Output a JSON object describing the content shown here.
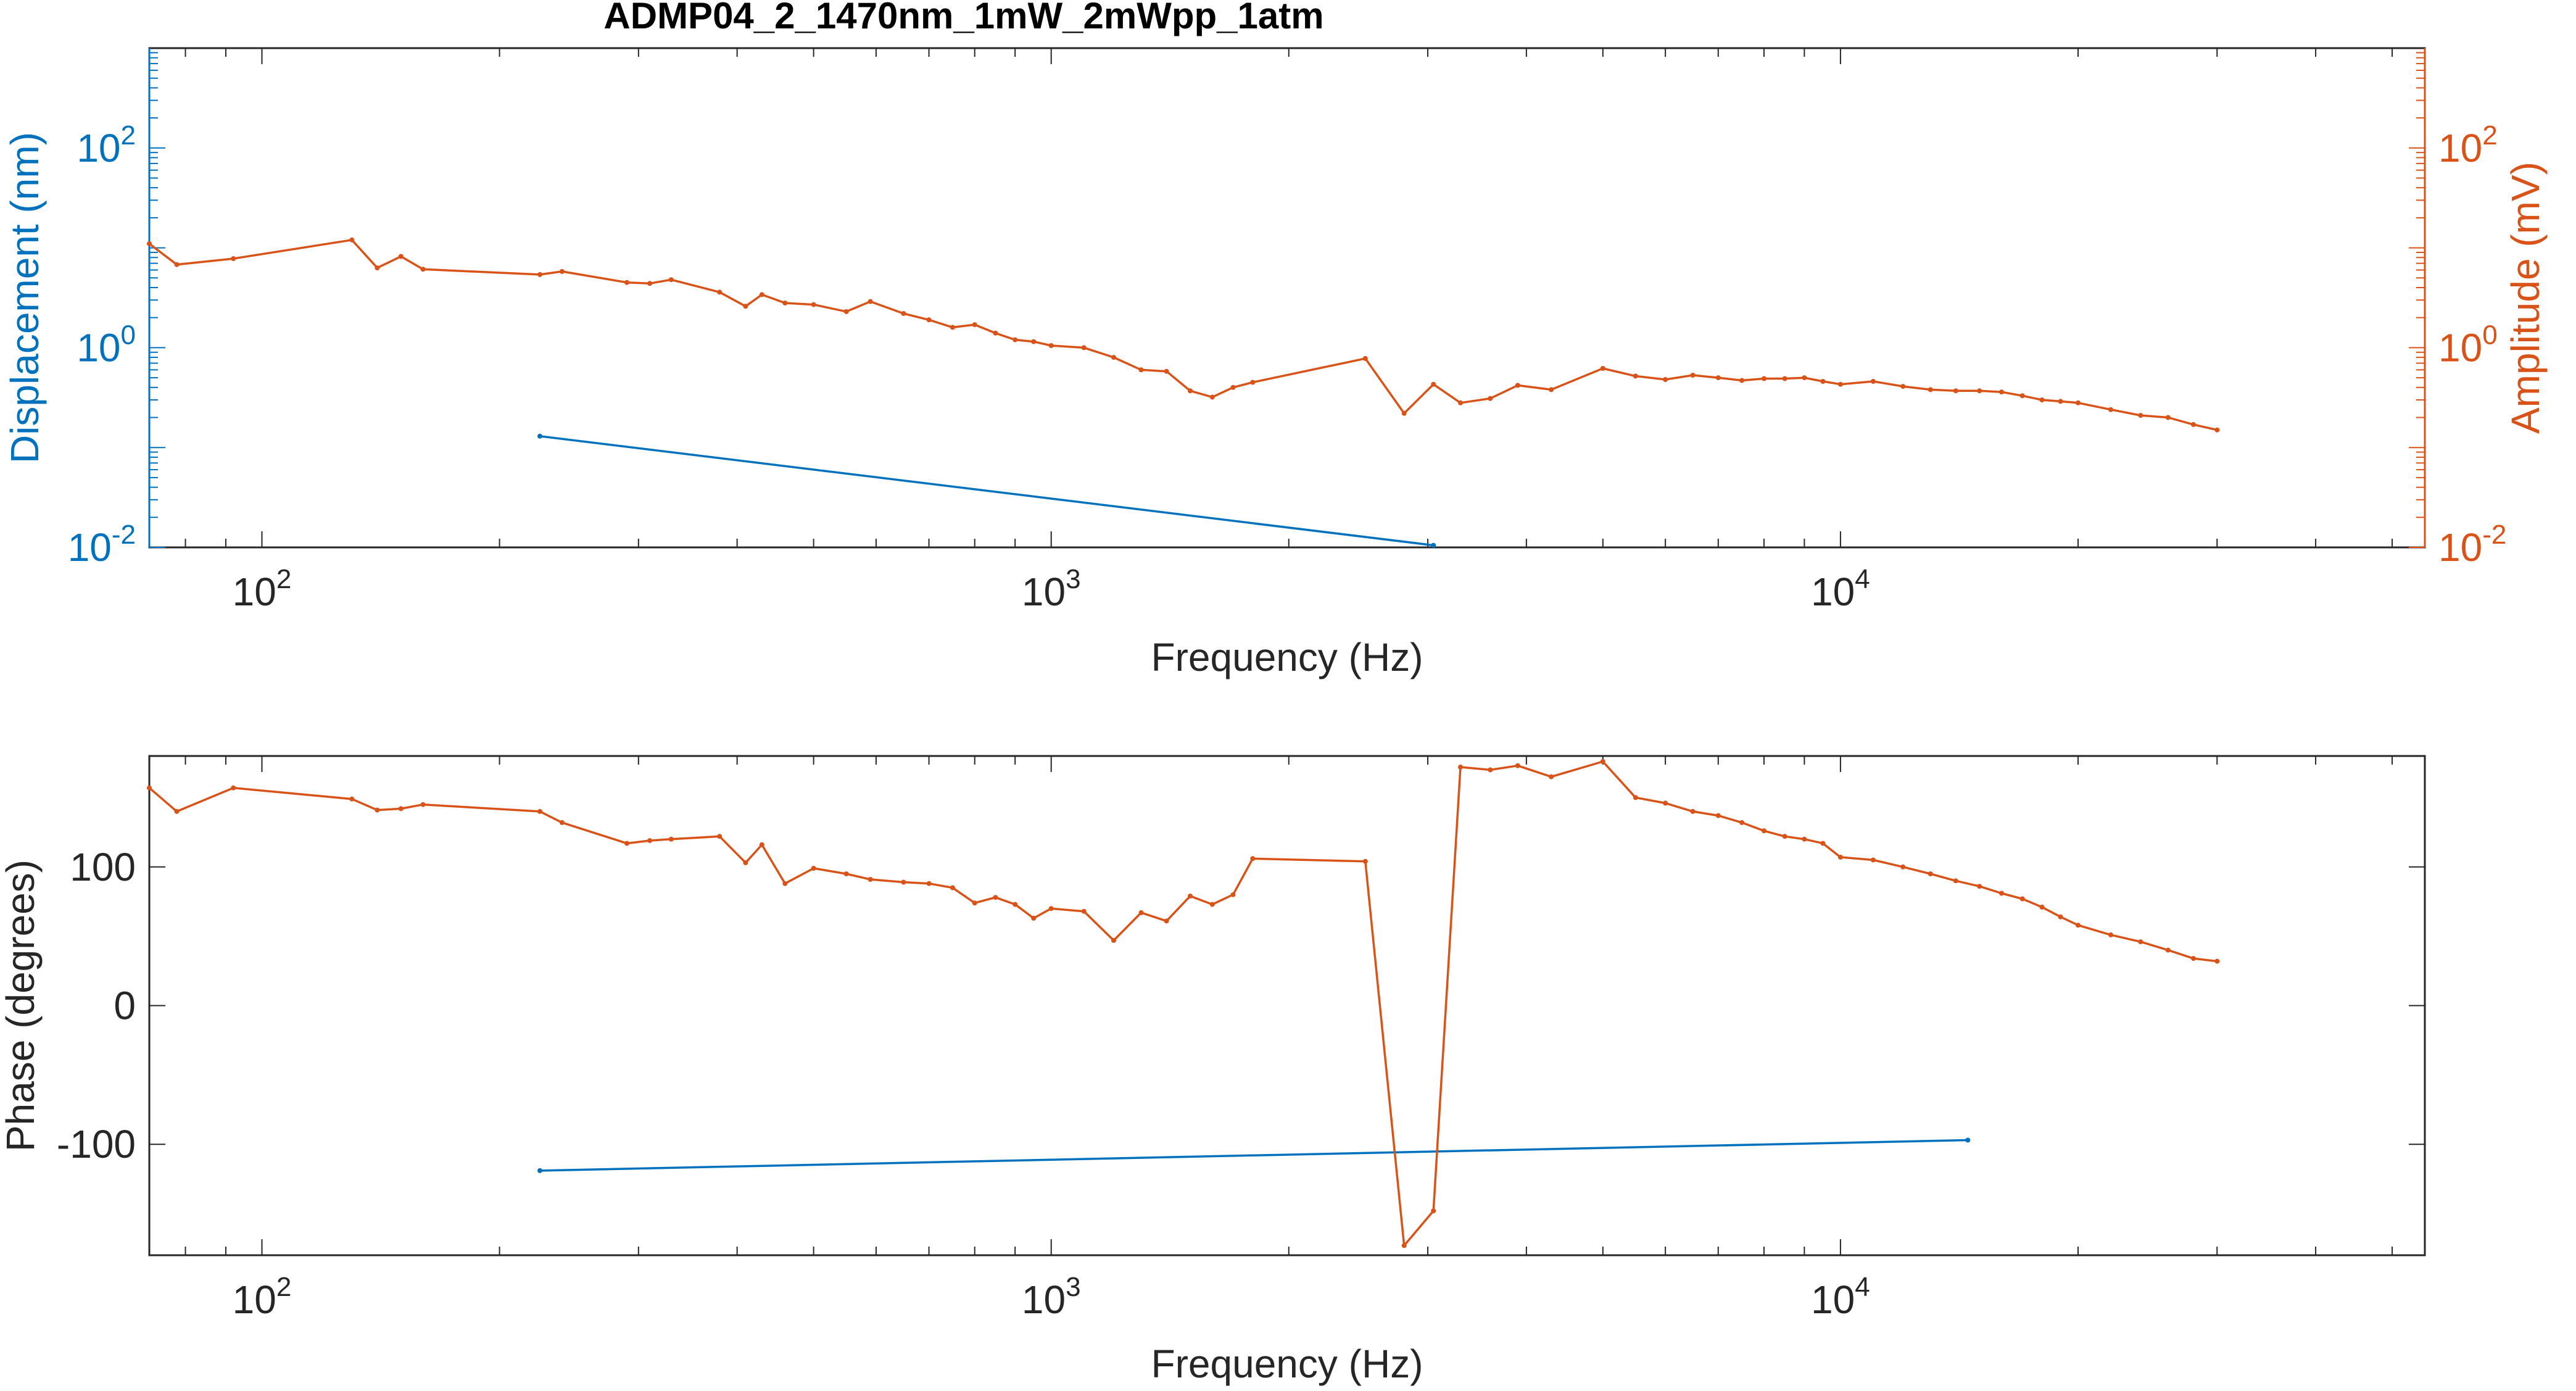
{
  "title": "ADMP04_2_1470nm_1mW_2mWpp_1atm",
  "colors": {
    "displacement": "#0072BD",
    "amplitude": "#D95319",
    "axis": "#262626",
    "grid": "#DADADA",
    "background": "#FFFFFF"
  },
  "chart_data": [
    {
      "type": "line",
      "x_scale": "log",
      "y_scale": "log",
      "xlabel": "Frequency (Hz)",
      "ylabel": "Displacement (nm)",
      "ylabel_right": "Amplitude (mV)",
      "xlim": [
        72,
        55000
      ],
      "ylim": [
        0.01,
        1000
      ],
      "ylim_right": [
        0.01,
        1000
      ],
      "x_ticks": [
        {
          "base": "10",
          "exp": "2",
          "value": 100
        },
        {
          "base": "10",
          "exp": "3",
          "value": 1000
        },
        {
          "base": "10",
          "exp": "4",
          "value": 10000
        }
      ],
      "y_ticks": [
        {
          "base": "10",
          "exp": "-2",
          "value": 0.01
        },
        {
          "base": "10",
          "exp": "0",
          "value": 1
        },
        {
          "base": "10",
          "exp": "2",
          "value": 100
        }
      ],
      "y_ticks_right": [
        {
          "base": "10",
          "exp": "-2",
          "value": 0.01
        },
        {
          "base": "10",
          "exp": "0",
          "value": 1
        },
        {
          "base": "10",
          "exp": "2",
          "value": 100
        }
      ],
      "grid": false,
      "series": [
        {
          "axis": "left",
          "color": "#0072BD",
          "x": [
            225,
            3050
          ],
          "y": [
            0.13,
            0.0105
          ]
        },
        {
          "axis": "right",
          "color": "#D95319",
          "x": [
            72,
            78,
            92,
            130,
            140,
            150,
            160,
            225,
            240,
            290,
            310,
            330,
            380,
            410,
            430,
            460,
            500,
            550,
            590,
            650,
            700,
            750,
            800,
            850,
            900,
            950,
            1000,
            1100,
            1200,
            1300,
            1400,
            1500,
            1600,
            1700,
            1800,
            2500,
            2800,
            3050,
            3300,
            3600,
            3900,
            4300,
            5000,
            5500,
            6000,
            6500,
            7000,
            7500,
            8000,
            8500,
            9000,
            9500,
            10000,
            11000,
            12000,
            13000,
            14000,
            15000,
            16000,
            17000,
            18000,
            19000,
            20000,
            22000,
            24000,
            26000,
            28000,
            30000
          ],
          "y": [
            11,
            6.8,
            7.8,
            12,
            6.3,
            8.2,
            6.1,
            5.4,
            5.8,
            4.5,
            4.4,
            4.8,
            3.6,
            2.6,
            3.4,
            2.8,
            2.7,
            2.3,
            2.9,
            2.2,
            1.9,
            1.6,
            1.7,
            1.4,
            1.2,
            1.15,
            1.05,
            1.0,
            0.8,
            0.6,
            0.58,
            0.37,
            0.32,
            0.4,
            0.45,
            0.78,
            0.22,
            0.43,
            0.28,
            0.31,
            0.42,
            0.38,
            0.62,
            0.52,
            0.48,
            0.53,
            0.5,
            0.47,
            0.49,
            0.49,
            0.5,
            0.46,
            0.43,
            0.46,
            0.41,
            0.38,
            0.37,
            0.37,
            0.36,
            0.33,
            0.3,
            0.29,
            0.28,
            0.24,
            0.21,
            0.2,
            0.17,
            0.15
          ]
        }
      ]
    },
    {
      "type": "line",
      "x_scale": "log",
      "y_scale": "linear",
      "xlabel": "Frequency (Hz)",
      "ylabel": "Phase (degrees)",
      "xlim": [
        72,
        55000
      ],
      "ylim": [
        -180,
        180
      ],
      "x_ticks": [
        {
          "base": "10",
          "exp": "2",
          "value": 100
        },
        {
          "base": "10",
          "exp": "3",
          "value": 1000
        },
        {
          "base": "10",
          "exp": "4",
          "value": 10000
        }
      ],
      "y_ticks": [
        {
          "label": "-100",
          "value": -100
        },
        {
          "label": "0",
          "value": 0
        },
        {
          "label": "100",
          "value": 100
        }
      ],
      "grid": false,
      "series": [
        {
          "color": "#0072BD",
          "x": [
            225,
            14500
          ],
          "y": [
            -119,
            -97
          ]
        },
        {
          "color": "#D95319",
          "x": [
            72,
            78,
            92,
            130,
            140,
            150,
            160,
            225,
            240,
            290,
            310,
            330,
            380,
            410,
            430,
            460,
            500,
            550,
            590,
            650,
            700,
            750,
            800,
            850,
            900,
            950,
            1000,
            1100,
            1200,
            1300,
            1400,
            1500,
            1600,
            1700,
            1800,
            2500,
            2800,
            3050,
            3300,
            3600,
            3900,
            4300,
            5000,
            5500,
            6000,
            6500,
            7000,
            7500,
            8000,
            8500,
            9000,
            9500,
            10000,
            11000,
            12000,
            13000,
            14000,
            15000,
            16000,
            17000,
            18000,
            19000,
            20000,
            22000,
            24000,
            26000,
            28000,
            30000
          ],
          "y": [
            157,
            140,
            157,
            149,
            141,
            142,
            145,
            140,
            132,
            117,
            119,
            120,
            122,
            103,
            116,
            88,
            99,
            95,
            91,
            89,
            88,
            85,
            74,
            78,
            73,
            63,
            70,
            68,
            47,
            67,
            61,
            79,
            73,
            80,
            106,
            104,
            -173,
            -148,
            172,
            170,
            173,
            165,
            176,
            150,
            146,
            140,
            137,
            132,
            126,
            122,
            120,
            117,
            107,
            105,
            100,
            95,
            90,
            86,
            81,
            77,
            71,
            64,
            58,
            51,
            46,
            40,
            34,
            32
          ]
        }
      ]
    }
  ]
}
